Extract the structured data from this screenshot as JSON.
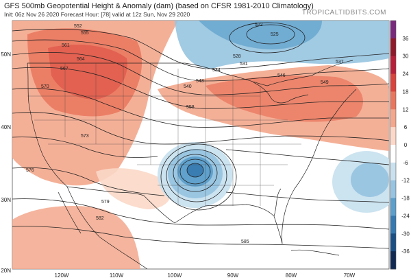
{
  "header": {
    "title": "GFS 500mb Geopotential Height & Anomaly (dam) (based on CFSR 1981-2010 Climatology)",
    "subtitle": "Init: 06z Nov 26 2020   Forecast Hour: [78]   valid at 12z Sun, Nov 29 2020",
    "brand": "TROPICALTIDBITS.COM"
  },
  "axes": {
    "lat_labels": [
      "50N",
      "40N",
      "30N",
      "20N"
    ],
    "lon_labels": [
      "120W",
      "110W",
      "100W",
      "90W",
      "80W",
      "70W"
    ]
  },
  "colorbar": {
    "ticks": [
      "36",
      "30",
      "24",
      "18",
      "12",
      "6",
      "0",
      "-6",
      "-12",
      "-18",
      "-24",
      "-30",
      "-36"
    ],
    "colors": [
      "#7a2a7c",
      "#8e1a2a",
      "#b8203a",
      "#d9443c",
      "#e9775d",
      "#f3a78c",
      "#fbd8c8",
      "#ffffff",
      "#c9e1ef",
      "#97c4e0",
      "#5d9fcb",
      "#3579b0",
      "#1a4f84",
      "#102a52"
    ]
  },
  "contour_labels": [
    "552",
    "555",
    "561",
    "564",
    "567",
    "570",
    "573",
    "576",
    "579",
    "582",
    "585",
    "528",
    "531",
    "534",
    "537",
    "540",
    "543",
    "546",
    "549",
    "522",
    "525",
    "558"
  ],
  "features": {
    "cutoff_low": "Cutoff low over Texas/Oklahoma",
    "ridge": "Ridge over western US"
  }
}
